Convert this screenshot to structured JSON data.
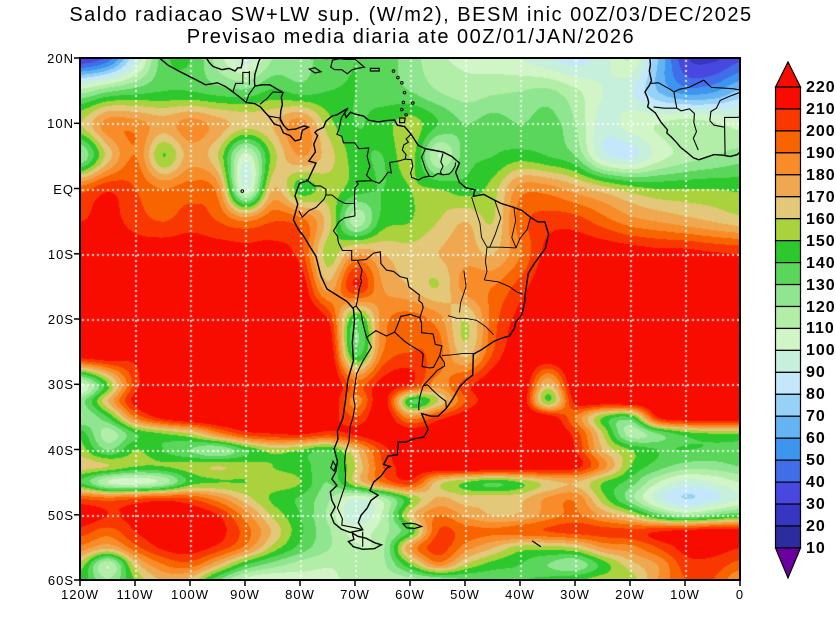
{
  "title": {
    "line1": "Saldo radiacao SW+LW sup. (W/m2), BESM inic 00Z/03/DEC/2025",
    "line2": "Previsao media diaria ate 00Z/01/JAN/2026"
  },
  "axes": {
    "lat": {
      "labels": [
        "20N",
        "10N",
        "EQ",
        "10S",
        "20S",
        "30S",
        "40S",
        "50S",
        "60S"
      ],
      "degrees": [
        20,
        10,
        0,
        -10,
        -20,
        -30,
        -40,
        -50,
        -60
      ]
    },
    "lon": {
      "labels": [
        "120W",
        "110W",
        "100W",
        "90W",
        "80W",
        "70W",
        "60W",
        "50W",
        "40W",
        "30W",
        "20W",
        "10W",
        "0"
      ],
      "degrees": [
        -120,
        -110,
        -100,
        -90,
        -80,
        -70,
        -60,
        -50,
        -40,
        -30,
        -20,
        -10,
        0
      ]
    }
  },
  "colorbar": {
    "labels": [
      "220",
      "210",
      "200",
      "190",
      "180",
      "170",
      "160",
      "150",
      "140",
      "130",
      "120",
      "110",
      "100",
      "90",
      "80",
      "70",
      "60",
      "50",
      "40",
      "30",
      "20",
      "10"
    ]
  },
  "chart_data": {
    "type": "heatmap",
    "title": "Saldo radiacao SW+LW sup. (W/m2)",
    "subtitle": "Previsao media diaria ate 00Z/01/JAN/2026",
    "units": "W/m2",
    "lon_range": [
      -120,
      0
    ],
    "lat_range": [
      -60,
      20
    ],
    "levels": [
      10,
      20,
      30,
      40,
      50,
      60,
      70,
      80,
      90,
      100,
      110,
      120,
      130,
      140,
      150,
      160,
      170,
      180,
      190,
      200,
      210,
      220
    ],
    "palette": [
      "#6a00a0",
      "#2c2ca0",
      "#3636c2",
      "#4848e0",
      "#3f6ee8",
      "#3c96f0",
      "#64b4f4",
      "#96d2f8",
      "#c4e8fa",
      "#c6f0dc",
      "#d2f5c8",
      "#b2eea8",
      "#90e690",
      "#5ad65a",
      "#2cc82c",
      "#aad23c",
      "#e2c878",
      "#f0a850",
      "#f88c28",
      "#f86400",
      "#f83800",
      "#f80c00",
      "#f80c00"
    ],
    "grid_lons": [
      -120,
      -115,
      -110,
      -105,
      -100,
      -95,
      -90,
      -85,
      -80,
      -75,
      -70,
      -65,
      -60,
      -55,
      -50,
      -45,
      -40,
      -35,
      -30,
      -25,
      -20,
      -15,
      -10,
      -5,
      0
    ],
    "grid_lats": [
      20,
      15,
      10,
      5,
      0,
      -5,
      -10,
      -15,
      -20,
      -25,
      -30,
      -32.5,
      -35,
      -37.5,
      -40,
      -42.5,
      -45,
      -47.5,
      -50,
      -52.5,
      -55,
      -57.5,
      -60
    ],
    "values": [
      [
        30,
        45,
        90,
        135,
        140,
        115,
        95,
        120,
        125,
        135,
        140,
        135,
        125,
        112,
        108,
        105,
        100,
        92,
        85,
        95,
        110,
        70,
        32,
        28,
        38
      ],
      [
        115,
        128,
        135,
        140,
        140,
        135,
        132,
        142,
        136,
        140,
        140,
        135,
        130,
        120,
        115,
        118,
        120,
        122,
        112,
        100,
        92,
        70,
        55,
        58,
        72
      ],
      [
        160,
        185,
        185,
        175,
        185,
        175,
        165,
        170,
        185,
        155,
        140,
        145,
        155,
        140,
        130,
        135,
        130,
        135,
        120,
        95,
        105,
        110,
        116,
        112,
        105
      ],
      [
        120,
        165,
        190,
        150,
        175,
        160,
        105,
        155,
        180,
        165,
        145,
        140,
        155,
        110,
        135,
        140,
        145,
        140,
        130,
        95,
        88,
        105,
        115,
        120,
        125
      ],
      [
        195,
        208,
        200,
        190,
        195,
        185,
        100,
        170,
        145,
        155,
        145,
        140,
        150,
        150,
        145,
        155,
        185,
        185,
        175,
        165,
        155,
        150,
        150,
        150,
        148
      ],
      [
        210,
        215,
        205,
        200,
        205,
        200,
        190,
        200,
        195,
        165,
        115,
        145,
        150,
        160,
        170,
        160,
        195,
        205,
        205,
        195,
        185,
        180,
        175,
        170,
        165
      ],
      [
        225,
        225,
        220,
        220,
        220,
        218,
        215,
        215,
        205,
        155,
        180,
        170,
        165,
        170,
        175,
        170,
        190,
        215,
        218,
        220,
        218,
        215,
        215,
        212,
        210
      ],
      [
        228,
        228,
        228,
        225,
        225,
        225,
        225,
        222,
        220,
        175,
        210,
        180,
        170,
        160,
        185,
        190,
        205,
        222,
        225,
        228,
        225,
        222,
        220,
        218,
        215
      ],
      [
        228,
        228,
        228,
        228,
        228,
        228,
        228,
        228,
        225,
        210,
        140,
        185,
        195,
        185,
        160,
        195,
        215,
        225,
        228,
        228,
        228,
        225,
        225,
        222,
        222
      ],
      [
        228,
        228,
        215,
        228,
        228,
        228,
        228,
        228,
        228,
        225,
        135,
        190,
        200,
        195,
        165,
        200,
        222,
        228,
        228,
        228,
        228,
        228,
        225,
        225,
        225
      ],
      [
        105,
        150,
        205,
        225,
        228,
        228,
        228,
        222,
        228,
        228,
        195,
        215,
        210,
        185,
        205,
        220,
        228,
        170,
        225,
        228,
        228,
        228,
        228,
        228,
        228
      ],
      [
        125,
        170,
        215,
        228,
        228,
        228,
        228,
        210,
        228,
        228,
        185,
        218,
        140,
        160,
        200,
        218,
        225,
        150,
        215,
        222,
        225,
        225,
        225,
        228,
        228
      ],
      [
        120,
        140,
        190,
        215,
        225,
        228,
        225,
        220,
        222,
        218,
        200,
        222,
        185,
        205,
        218,
        225,
        228,
        218,
        190,
        150,
        140,
        210,
        222,
        225,
        225
      ],
      [
        145,
        115,
        140,
        150,
        160,
        185,
        205,
        210,
        212,
        205,
        212,
        222,
        220,
        222,
        225,
        228,
        225,
        222,
        205,
        160,
        115,
        130,
        145,
        150,
        150
      ],
      [
        155,
        130,
        150,
        140,
        130,
        120,
        140,
        155,
        150,
        140,
        170,
        205,
        222,
        225,
        228,
        228,
        228,
        225,
        210,
        170,
        150,
        140,
        140,
        138,
        138
      ],
      [
        165,
        160,
        150,
        150,
        155,
        160,
        155,
        150,
        145,
        135,
        160,
        200,
        218,
        225,
        228,
        228,
        225,
        222,
        215,
        185,
        150,
        135,
        125,
        125,
        130
      ],
      [
        140,
        110,
        105,
        115,
        145,
        150,
        150,
        155,
        150,
        130,
        160,
        190,
        205,
        165,
        150,
        140,
        150,
        165,
        170,
        150,
        135,
        110,
        95,
        100,
        110
      ],
      [
        200,
        195,
        200,
        205,
        200,
        185,
        165,
        148,
        138,
        122,
        100,
        115,
        150,
        172,
        165,
        168,
        168,
        182,
        188,
        155,
        125,
        95,
        80,
        88,
        100
      ],
      [
        218,
        210,
        212,
        218,
        220,
        210,
        185,
        158,
        140,
        118,
        92,
        112,
        165,
        190,
        178,
        170,
        172,
        185,
        192,
        178,
        162,
        135,
        120,
        130,
        140
      ],
      [
        205,
        195,
        210,
        218,
        222,
        215,
        195,
        168,
        142,
        122,
        106,
        116,
        142,
        200,
        195,
        192,
        196,
        200,
        204,
        204,
        204,
        210,
        216,
        219,
        218
      ],
      [
        186,
        172,
        196,
        212,
        216,
        206,
        186,
        156,
        136,
        121,
        111,
        118,
        180,
        205,
        185,
        170,
        155,
        155,
        160,
        180,
        186,
        200,
        214,
        215,
        210
      ],
      [
        156,
        112,
        166,
        190,
        196,
        172,
        142,
        126,
        116,
        111,
        113,
        118,
        150,
        185,
        160,
        146,
        140,
        130,
        122,
        145,
        166,
        181,
        205,
        206,
        196
      ],
      [
        146,
        121,
        151,
        171,
        166,
        131,
        106,
        101,
        106,
        109,
        111,
        113,
        116,
        121,
        129,
        133,
        139,
        143,
        149,
        155,
        155,
        180,
        200,
        200,
        180
      ]
    ]
  }
}
